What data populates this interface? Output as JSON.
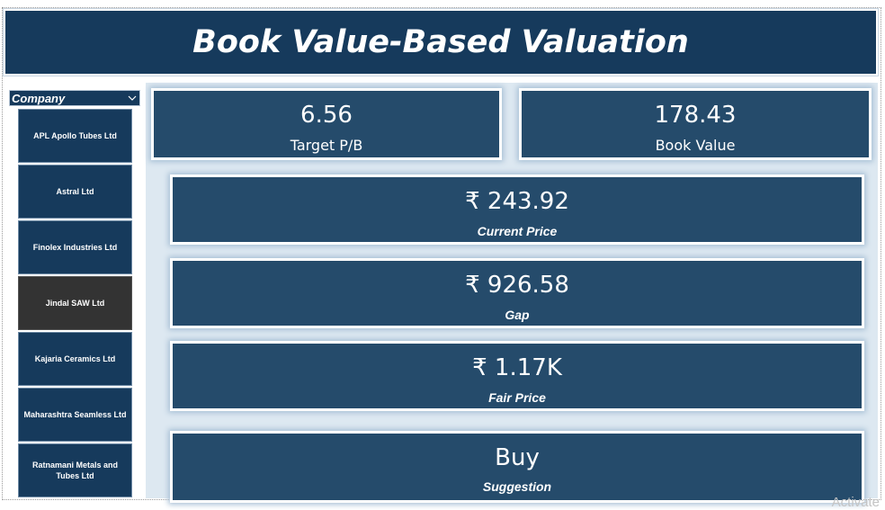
{
  "title": "Book Value-Based Valuation",
  "slicer": {
    "header": "Company",
    "items": [
      {
        "label": "APL Apollo Tubes Ltd",
        "selected": false
      },
      {
        "label": "Astral Ltd",
        "selected": false
      },
      {
        "label": "Finolex Industries Ltd",
        "selected": false
      },
      {
        "label": "Jindal SAW Ltd",
        "selected": true
      },
      {
        "label": "Kajaria Ceramics Ltd",
        "selected": false
      },
      {
        "label": "Maharashtra Seamless Ltd",
        "selected": false
      },
      {
        "label": "Ratnamani Metals and Tubes Ltd",
        "selected": false
      }
    ]
  },
  "cards": {
    "target_pb": {
      "value": "6.56",
      "label": "Target P/B"
    },
    "book_value": {
      "value": "178.43",
      "label": "Book Value"
    },
    "current_price": {
      "value": "₹ 243.92",
      "label": "Current Price"
    },
    "gap": {
      "value": "₹ 926.58",
      "label": "Gap"
    },
    "fair_price": {
      "value": "₹ 1.17K",
      "label": "Fair Price"
    },
    "suggestion": {
      "value": "Buy",
      "label": "Suggestion"
    }
  },
  "watermark": "Activate",
  "colors": {
    "title_bg": "#163a5c",
    "card_bg": "#254b6b",
    "selected_item": "#333333"
  },
  "icons": {
    "slicer_dropdown": "chevron-down-icon"
  }
}
